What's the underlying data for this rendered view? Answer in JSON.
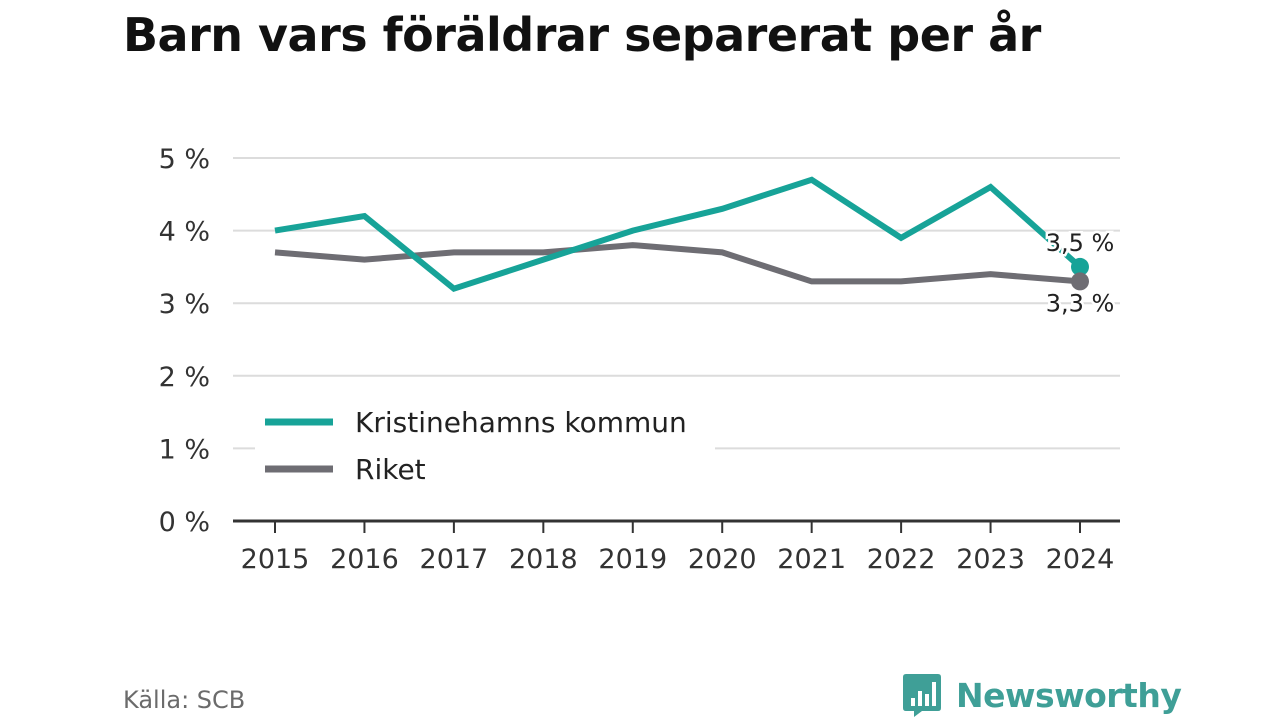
{
  "title": "Barn vars föräldrar separerat per år",
  "source": "Källa: SCB",
  "brand": {
    "name": "Newsworthy",
    "color": "#3f9f97",
    "icon": "newsworthy-bar-chart-logo-icon"
  },
  "chart_data": {
    "type": "line",
    "title": "Barn vars föräldrar separerat per år",
    "x": [
      "2015",
      "2016",
      "2017",
      "2018",
      "2019",
      "2020",
      "2021",
      "2022",
      "2023",
      "2024"
    ],
    "ylim": [
      0,
      5
    ],
    "yticks": [
      "0 %",
      "1 %",
      "2 %",
      "3 %",
      "4 %",
      "5 %"
    ],
    "grid": true,
    "legend": "bottom-left",
    "series": [
      {
        "name": "Kristinehamns kommun",
        "color": "#17a398",
        "values": [
          4.0,
          4.2,
          3.2,
          3.6,
          4.0,
          4.3,
          4.7,
          3.9,
          4.6,
          3.5
        ],
        "end_label": "3,5 %"
      },
      {
        "name": "Riket",
        "color": "#6e6d73",
        "values": [
          3.7,
          3.6,
          3.7,
          3.7,
          3.8,
          3.7,
          3.3,
          3.3,
          3.4,
          3.3
        ],
        "end_label": "3,3 %"
      }
    ]
  }
}
